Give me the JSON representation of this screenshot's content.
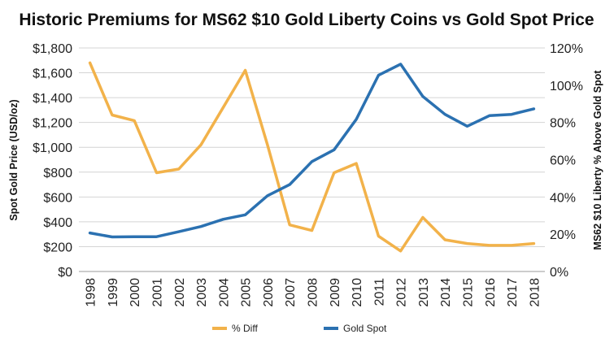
{
  "chart_data": {
    "type": "line",
    "title": "Historic Premiums for MS62 $10 Gold Liberty Coins vs Gold Spot Price",
    "xlabel": "",
    "ylabel_left": "Spot Gold Price  (USD/oz)",
    "ylabel_right": "MS62 $10 Liberty % Above Gold Spot",
    "x": [
      "1998",
      "1999",
      "2000",
      "2001",
      "2002",
      "2003",
      "2004",
      "2005",
      "2006",
      "2007",
      "2008",
      "2009",
      "2010",
      "2011",
      "2012",
      "2013",
      "2014",
      "2015",
      "2016",
      "2017",
      "2018"
    ],
    "ylim_left": [
      0,
      1800
    ],
    "ylim_right": [
      0,
      120
    ],
    "yticks_left": [
      "$0",
      "$200",
      "$400",
      "$600",
      "$800",
      "$1,000",
      "$1,200",
      "$1,400",
      "$1,600",
      "$1,800"
    ],
    "yticks_right": [
      "0%",
      "20%",
      "40%",
      "60%",
      "80%",
      "100%",
      "120%"
    ],
    "grid": "horizontal",
    "legend_position": "bottom",
    "series": [
      {
        "name": "% Diff",
        "axis": "right",
        "color": "#f2b24a",
        "values": [
          112,
          84,
          81,
          53,
          55,
          68,
          88,
          108,
          68,
          25,
          22,
          53,
          58,
          19,
          11,
          29,
          17,
          15,
          14,
          14,
          15
        ]
      },
      {
        "name": "Gold Spot",
        "axis": "left",
        "color": "#2b71b1",
        "values": [
          310,
          278,
          280,
          280,
          320,
          362,
          420,
          456,
          610,
          700,
          885,
          980,
          1225,
          1580,
          1670,
          1410,
          1265,
          1170,
          1255,
          1265,
          1310
        ]
      }
    ]
  }
}
